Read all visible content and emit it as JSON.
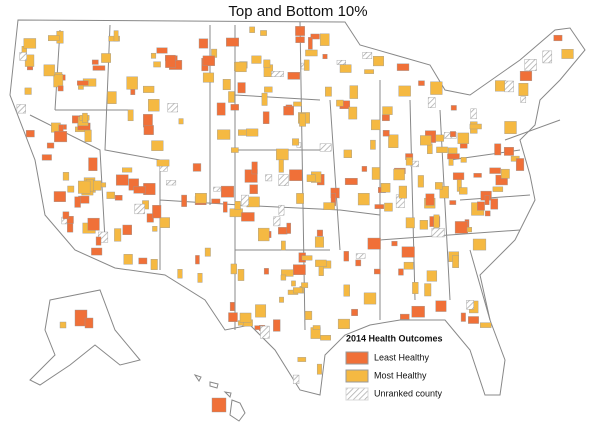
{
  "title": "Top and Bottom 10%",
  "legend": {
    "title": "2014 Health Outcomes",
    "items": [
      {
        "label": "Least Healthy",
        "color": "#f07038"
      },
      {
        "label": "Most Healthy",
        "color": "#f5b942"
      },
      {
        "label": "Unranked county",
        "color": "#d8d8d8"
      }
    ]
  }
}
